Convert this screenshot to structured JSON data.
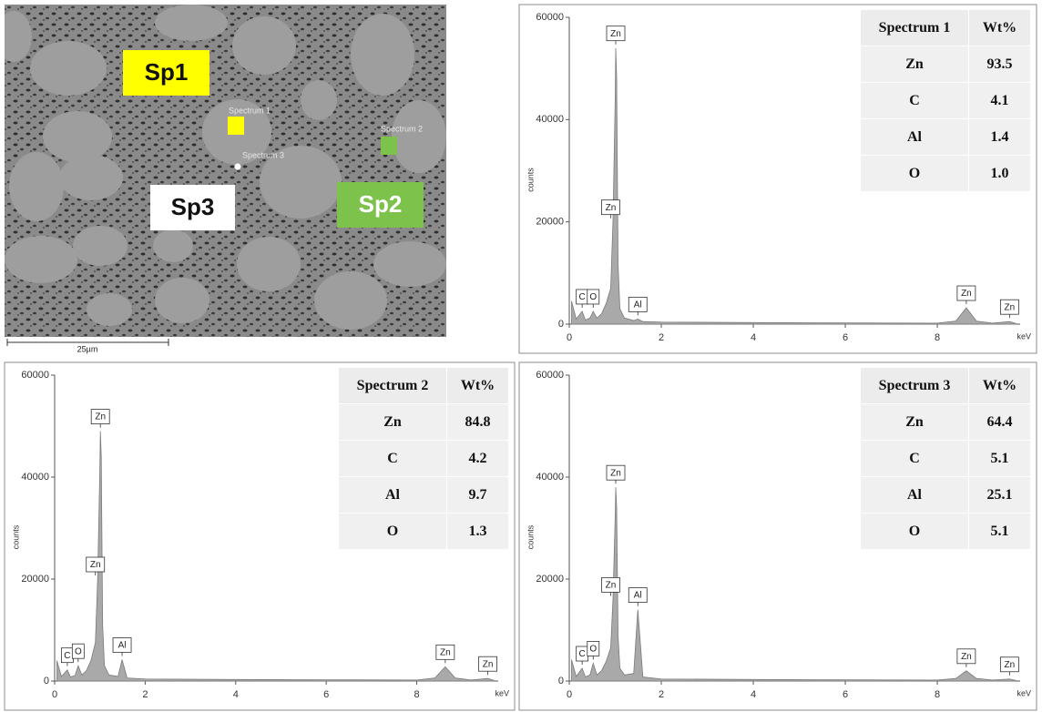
{
  "image": {
    "regions": [
      {
        "label": "Sp1",
        "spectrum": "Spectrum 1"
      },
      {
        "label": "Sp2",
        "spectrum": "Spectrum 2"
      },
      {
        "label": "Sp3",
        "spectrum": "Spectrum 3"
      }
    ],
    "scale_bar": "25µm"
  },
  "chart_data": [
    {
      "type": "area",
      "color": "#a9a9a9",
      "x_label": "keV",
      "y_label": "counts",
      "x": [
        0.05,
        0.15,
        0.28,
        0.35,
        0.45,
        0.52,
        0.6,
        0.7,
        0.8,
        0.9,
        0.95,
        1.0,
        1.01,
        1.03,
        1.06,
        1.1,
        1.2,
        1.4,
        1.49,
        1.6,
        2,
        4,
        6,
        8,
        8.4,
        8.63,
        8.85,
        9.2,
        9.57,
        9.7
      ],
      "values": [
        4500,
        1000,
        2500,
        800,
        1200,
        2500,
        1200,
        2000,
        4000,
        7000,
        20000,
        45000,
        54000,
        48000,
        12000,
        3000,
        1200,
        700,
        1000,
        500,
        400,
        300,
        250,
        200,
        600,
        3200,
        600,
        200,
        500,
        150
      ],
      "xlim": [
        0,
        9.8
      ],
      "xticks": [
        0,
        2,
        4,
        6,
        8
      ],
      "ylim": [
        0,
        60000
      ],
      "yticks": [
        0,
        20000,
        40000,
        60000
      ],
      "annotations": [
        {
          "text": "C",
          "x": 0.28
        },
        {
          "text": "O",
          "x": 0.52
        },
        {
          "text": "Zn",
          "x": 0.9
        },
        {
          "text": "Zn",
          "x": 1.01
        },
        {
          "text": "Al",
          "x": 1.49
        },
        {
          "text": "Zn",
          "x": 8.63
        },
        {
          "text": "Zn",
          "x": 9.57
        }
      ],
      "table": {
        "header": [
          "Spectrum 1",
          "Wt%"
        ],
        "rows": [
          [
            "Zn",
            "93.5"
          ],
          [
            "C",
            "4.1"
          ],
          [
            "Al",
            "1.4"
          ],
          [
            "O",
            "1.0"
          ]
        ]
      }
    },
    {
      "type": "area",
      "color": "#a9a9a9",
      "x_label": "keV",
      "y_label": "counts",
      "x": [
        0.05,
        0.15,
        0.28,
        0.35,
        0.45,
        0.52,
        0.6,
        0.7,
        0.8,
        0.9,
        0.95,
        1.0,
        1.01,
        1.03,
        1.06,
        1.1,
        1.2,
        1.4,
        1.49,
        1.6,
        2,
        4,
        6,
        8,
        8.4,
        8.63,
        8.85,
        9.2,
        9.57,
        9.7
      ],
      "values": [
        4000,
        900,
        2200,
        800,
        1100,
        3000,
        1200,
        2000,
        4000,
        7500,
        20000,
        42000,
        49000,
        44000,
        11000,
        3000,
        1200,
        900,
        4200,
        600,
        400,
        300,
        250,
        200,
        600,
        2800,
        600,
        200,
        500,
        150
      ],
      "xlim": [
        0,
        9.8
      ],
      "xticks": [
        0,
        2,
        4,
        6,
        8
      ],
      "ylim": [
        0,
        60000
      ],
      "yticks": [
        0,
        20000,
        40000,
        60000
      ],
      "annotations": [
        {
          "text": "C",
          "x": 0.28
        },
        {
          "text": "O",
          "x": 0.52
        },
        {
          "text": "Zn",
          "x": 0.9
        },
        {
          "text": "Zn",
          "x": 1.01
        },
        {
          "text": "Al",
          "x": 1.49
        },
        {
          "text": "Zn",
          "x": 8.63
        },
        {
          "text": "Zn",
          "x": 9.57
        }
      ],
      "table": {
        "header": [
          "Spectrum 2",
          "Wt%"
        ],
        "rows": [
          [
            "Zn",
            "84.8"
          ],
          [
            "C",
            "4.2"
          ],
          [
            "Al",
            "9.7"
          ],
          [
            "O",
            "1.3"
          ]
        ]
      }
    },
    {
      "type": "area",
      "color": "#a9a9a9",
      "x_label": "keV",
      "y_label": "counts",
      "x": [
        0.05,
        0.15,
        0.28,
        0.35,
        0.45,
        0.52,
        0.6,
        0.7,
        0.8,
        0.9,
        0.95,
        1.0,
        1.01,
        1.03,
        1.06,
        1.1,
        1.2,
        1.4,
        1.49,
        1.6,
        2,
        4,
        6,
        8,
        8.4,
        8.63,
        8.85,
        9.2,
        9.57,
        9.7
      ],
      "values": [
        4200,
        900,
        2500,
        800,
        1200,
        3500,
        1200,
        2000,
        3800,
        6500,
        16000,
        33000,
        38000,
        34000,
        9000,
        2500,
        1200,
        1500,
        14000,
        800,
        400,
        300,
        250,
        200,
        500,
        2000,
        500,
        200,
        400,
        150
      ],
      "xlim": [
        0,
        9.8
      ],
      "xticks": [
        0,
        2,
        4,
        6,
        8
      ],
      "ylim": [
        0,
        60000
      ],
      "yticks": [
        0,
        20000,
        40000,
        60000
      ],
      "annotations": [
        {
          "text": "C",
          "x": 0.28
        },
        {
          "text": "O",
          "x": 0.52
        },
        {
          "text": "Zn",
          "x": 0.9
        },
        {
          "text": "Zn",
          "x": 1.01
        },
        {
          "text": "Al",
          "x": 1.49
        },
        {
          "text": "Zn",
          "x": 8.63
        },
        {
          "text": "Zn",
          "x": 9.57
        }
      ],
      "table": {
        "header": [
          "Spectrum 3",
          "Wt%"
        ],
        "rows": [
          [
            "Zn",
            "64.4"
          ],
          [
            "C",
            "5.1"
          ],
          [
            "Al",
            "25.1"
          ],
          [
            "O",
            "5.1"
          ]
        ]
      }
    }
  ]
}
